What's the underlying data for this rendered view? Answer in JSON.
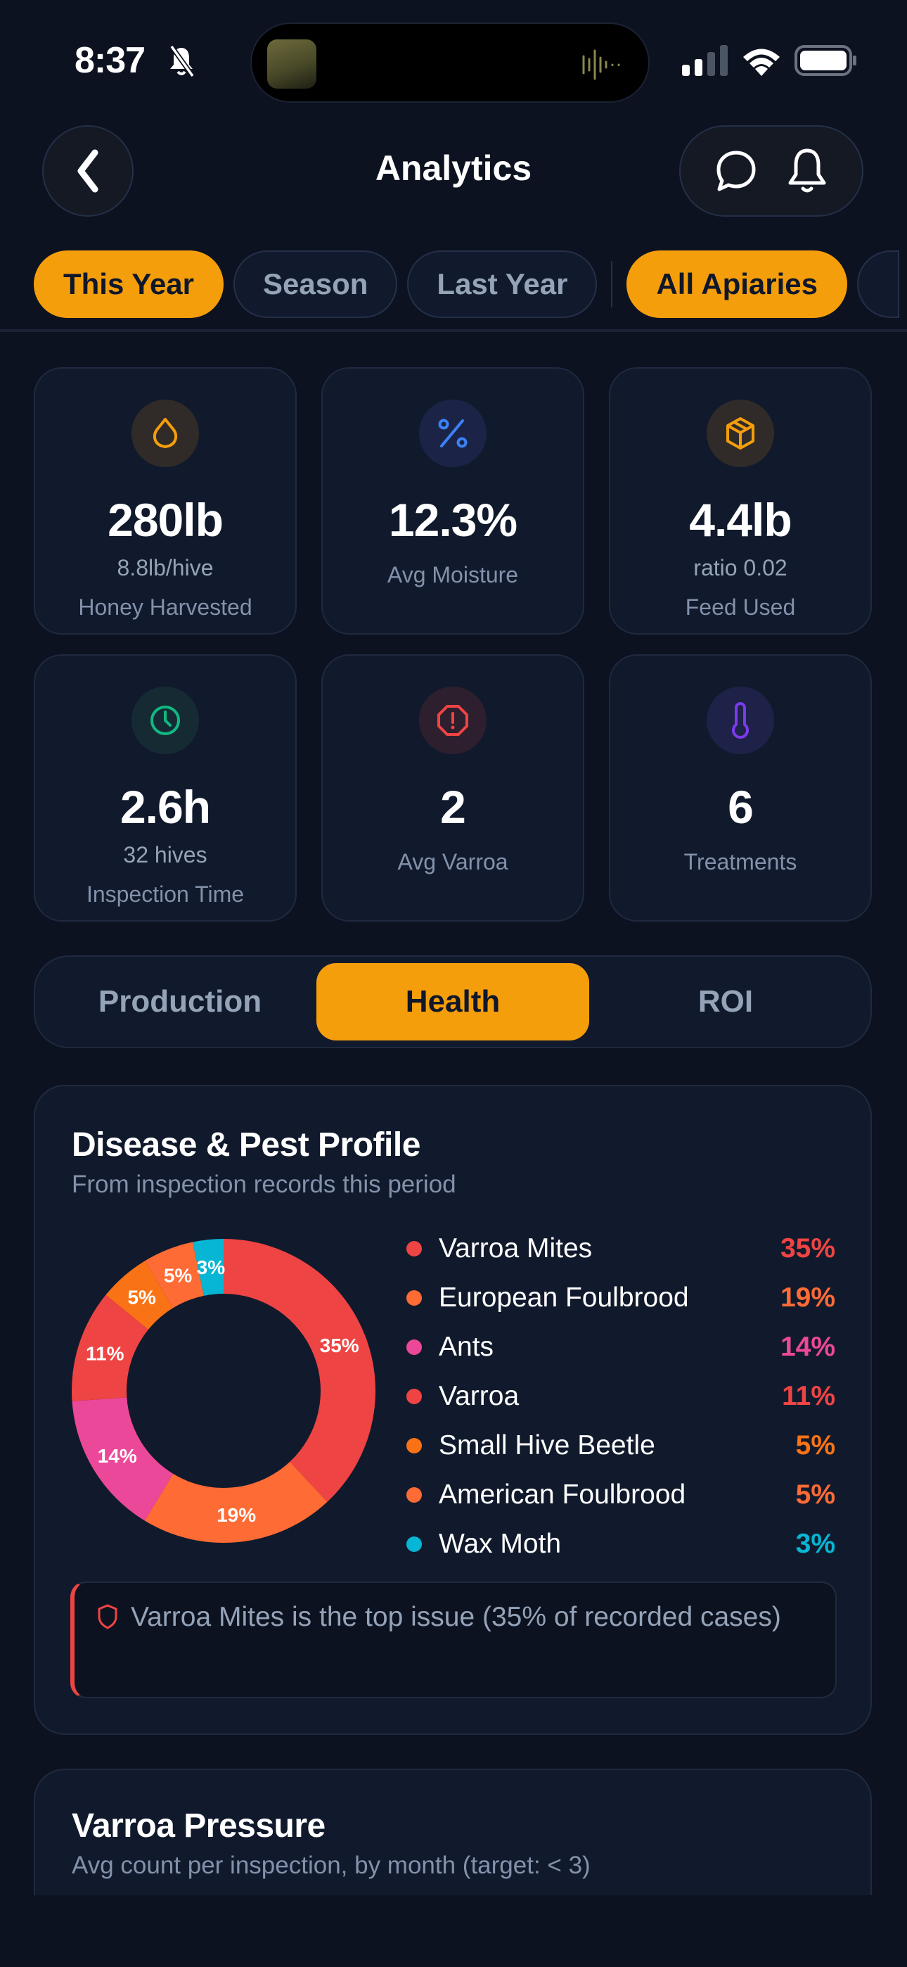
{
  "status_bar": {
    "time": "8:37",
    "silent_mode": true,
    "signal_bars": 2,
    "wifi": true,
    "battery_level": "full"
  },
  "header": {
    "title": "Analytics",
    "back_icon": "chevron-left-icon",
    "actions": [
      "chat-bubble-icon",
      "bell-icon"
    ]
  },
  "filters": {
    "period": [
      {
        "label": "This Year",
        "active": true
      },
      {
        "label": "Season",
        "active": false
      },
      {
        "label": "Last Year",
        "active": false
      }
    ],
    "scope": [
      {
        "label": "All Apiaries",
        "active": true
      }
    ]
  },
  "stats": [
    {
      "icon": "droplet-icon",
      "value": "280lb",
      "sub": "8.8lb/hive",
      "label": "Honey Harvested",
      "color": "#f59e0b",
      "bg": "#302b28"
    },
    {
      "icon": "percent-icon",
      "value": "12.3%",
      "sub": "",
      "label": "Avg Moisture",
      "color": "#3b82f6",
      "bg": "#1b2447"
    },
    {
      "icon": "package-icon",
      "value": "4.4lb",
      "sub": "ratio 0.02",
      "label": "Feed Used",
      "color": "#f59e0b",
      "bg": "#302b28"
    },
    {
      "icon": "clock-icon",
      "value": "2.6h",
      "sub": "32 hives",
      "label": "Inspection Time",
      "color": "#10b981",
      "bg": "#152a33"
    },
    {
      "icon": "alert-octagon-icon",
      "value": "2",
      "sub": "",
      "label": "Avg Varroa",
      "color": "#ef4444",
      "bg": "#2d1f2e"
    },
    {
      "icon": "thermometer-icon",
      "value": "6",
      "sub": "",
      "label": "Treatments",
      "color": "#7c3aed",
      "bg": "#1e2148"
    }
  ],
  "tabs": [
    {
      "label": "Production",
      "active": false
    },
    {
      "label": "Health",
      "active": true
    },
    {
      "label": "ROI",
      "active": false
    }
  ],
  "disease_card": {
    "title": "Disease & Pest Profile",
    "subtitle": "From inspection records this period",
    "alert_icon": "shield-icon",
    "alert_text": "Varroa Mites is the top issue (35% of recorded cases)"
  },
  "chart_data": {
    "type": "pie",
    "title": "Disease & Pest Profile",
    "subtitle": "From inspection records this period",
    "donut": true,
    "legend_position": "right",
    "categories": [
      "Varroa Mites",
      "European Foulbrood",
      "Ants",
      "Varroa",
      "Small Hive Beetle",
      "American Foulbrood",
      "Wax Moth"
    ],
    "values": [
      35,
      19,
      14,
      11,
      5,
      5,
      3
    ],
    "labels": [
      "35%",
      "19%",
      "14%",
      "11%",
      "5%",
      "5%",
      "3%"
    ],
    "colors": [
      "#ef4444",
      "#ff6b35",
      "#ec4899",
      "#ef4444",
      "#f97316",
      "#ff6b35",
      "#06b6d4"
    ]
  },
  "varroa_card": {
    "title": "Varroa Pressure",
    "subtitle": "Avg count per inspection, by month (target: < 3)"
  }
}
